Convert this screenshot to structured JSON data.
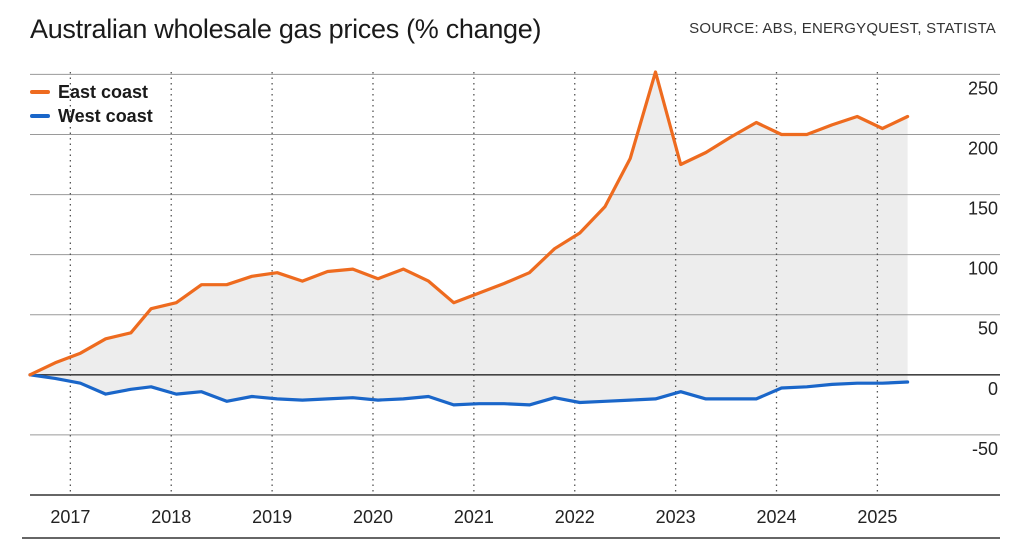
{
  "title": "Australian wholesale gas prices (% change)",
  "source": "SOURCE: ABS, ENERGYQUEST, STATISTA",
  "colors": {
    "east": "#ee6b1f",
    "west": "#1a66c9",
    "fill": "#ededed",
    "grid": "#9a9a9a"
  },
  "chart_data": {
    "type": "line",
    "title": "Australian wholesale gas prices (% change)",
    "xlabel": "",
    "ylabel": "",
    "xlim": [
      2016.6,
      2025.7
    ],
    "ylim": [
      -100,
      252
    ],
    "x_ticks": [
      2017,
      2018,
      2019,
      2020,
      2021,
      2022,
      2023,
      2024,
      2025
    ],
    "y_ticks": [
      -50,
      0,
      50,
      100,
      150,
      200,
      250
    ],
    "grid": {
      "horizontal": true,
      "vertical_dotted": true
    },
    "legend": "top-left",
    "series": [
      {
        "name": "East coast",
        "color": "#ee6b1f",
        "x": [
          2016.6,
          2016.85,
          2017.1,
          2017.35,
          2017.6,
          2017.8,
          2018.05,
          2018.3,
          2018.55,
          2018.8,
          2019.05,
          2019.3,
          2019.55,
          2019.8,
          2020.05,
          2020.3,
          2020.55,
          2020.8,
          2021.05,
          2021.3,
          2021.55,
          2021.8,
          2022.05,
          2022.3,
          2022.55,
          2022.8,
          2023.05,
          2023.3,
          2023.55,
          2023.8,
          2024.05,
          2024.3,
          2024.55,
          2024.8,
          2025.05,
          2025.3
        ],
        "values": [
          0,
          10,
          18,
          30,
          35,
          55,
          60,
          75,
          75,
          82,
          85,
          78,
          86,
          88,
          80,
          88,
          78,
          60,
          68,
          76,
          85,
          105,
          118,
          140,
          180,
          252,
          175,
          185,
          198,
          210,
          200,
          200,
          208,
          215,
          205,
          215
        ]
      },
      {
        "name": "West coast",
        "color": "#1a66c9",
        "x": [
          2016.6,
          2016.85,
          2017.1,
          2017.35,
          2017.6,
          2017.8,
          2018.05,
          2018.3,
          2018.55,
          2018.8,
          2019.05,
          2019.3,
          2019.55,
          2019.8,
          2020.05,
          2020.3,
          2020.55,
          2020.8,
          2021.05,
          2021.3,
          2021.55,
          2021.8,
          2022.05,
          2022.3,
          2022.55,
          2022.8,
          2023.05,
          2023.3,
          2023.55,
          2023.8,
          2024.05,
          2024.3,
          2024.55,
          2024.8,
          2025.05,
          2025.3
        ],
        "values": [
          0,
          -3,
          -7,
          -16,
          -12,
          -10,
          -16,
          -14,
          -22,
          -18,
          -20,
          -21,
          -20,
          -19,
          -21,
          -20,
          -18,
          -25,
          -24,
          -24,
          -25,
          -19,
          -23,
          -22,
          -21,
          -20,
          -14,
          -20,
          -20,
          -20,
          -11,
          -10,
          -8,
          -7,
          -7,
          -6
        ]
      }
    ]
  }
}
